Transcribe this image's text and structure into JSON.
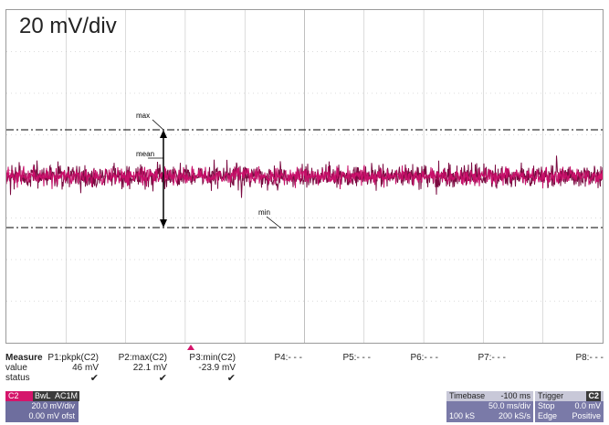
{
  "screen": {
    "vertical_scale": "20 mV/div",
    "channel_marker": "C2",
    "cursor_labels": {
      "max": "max",
      "mean": "mean",
      "min": "min"
    }
  },
  "measure": {
    "header": "Measure",
    "row_labels": [
      "value",
      "status"
    ],
    "params": [
      {
        "name": "P1:pkpk(C2)",
        "value": "46 mV",
        "status": "✔"
      },
      {
        "name": "P2:max(C2)",
        "value": "22.1 mV",
        "status": "✔"
      },
      {
        "name": "P3:min(C2)",
        "value": "-23.9 mV",
        "status": "✔"
      },
      {
        "name": "P4:- - -",
        "value": "",
        "status": ""
      },
      {
        "name": "P5:- - -",
        "value": "",
        "status": ""
      },
      {
        "name": "P6:- - -",
        "value": "",
        "status": ""
      },
      {
        "name": "P7:- - -",
        "value": "",
        "status": ""
      },
      {
        "name": "P8:- - -",
        "value": "",
        "status": ""
      }
    ]
  },
  "channel": {
    "name": "C2",
    "tags": [
      "BwL",
      "AC1M"
    ],
    "scale": "20.0 mV/div",
    "offset": "0.00 mV ofst"
  },
  "timebase": {
    "label": "Timebase",
    "delay": "-100 ms",
    "scale": "50.0 ms/div",
    "samples": "100 kS",
    "rate": "200 kS/s"
  },
  "trigger": {
    "label": "Trigger",
    "source": "C2",
    "mode": "Stop",
    "level": "0.0 mV",
    "type": "Edge",
    "slope": "Positive"
  },
  "colors": {
    "trace": "#c8106a",
    "trace_dark": "#7a0a40",
    "grid": "#b8b8b8",
    "channel": "#d5156b"
  }
}
